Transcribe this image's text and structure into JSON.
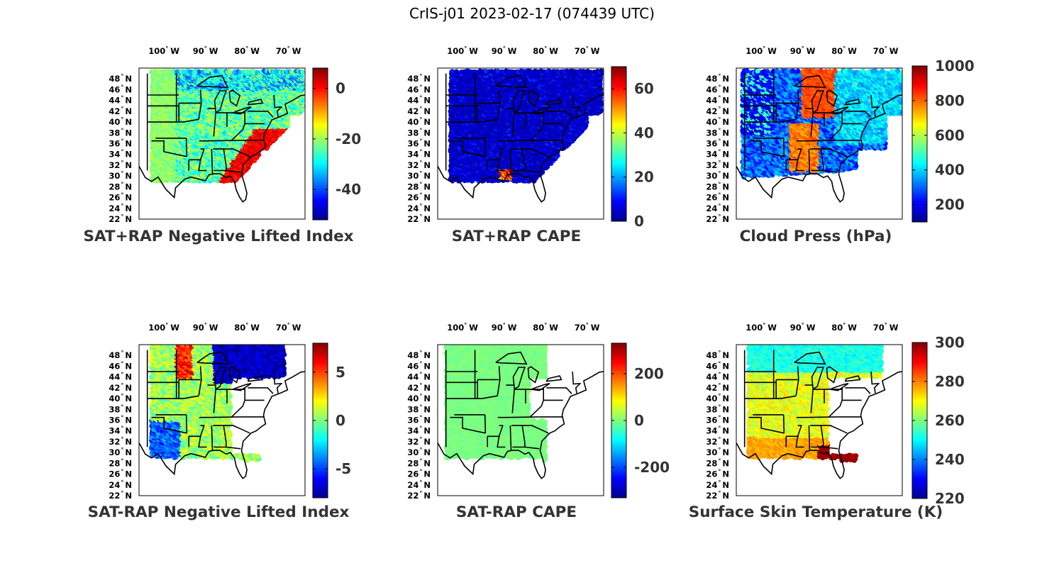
{
  "figure_title": "CrIS-j01 2023-02-17 (074439 UTC)",
  "lon_ticks": [
    {
      "deg": "100",
      "dir": "W"
    },
    {
      "deg": "90",
      "dir": "W"
    },
    {
      "deg": "80",
      "dir": "W"
    },
    {
      "deg": "70",
      "dir": "W"
    }
  ],
  "lat_ticks": [
    {
      "deg": "48",
      "dir": "N"
    },
    {
      "deg": "46",
      "dir": "N"
    },
    {
      "deg": "44",
      "dir": "N"
    },
    {
      "deg": "42",
      "dir": "N"
    },
    {
      "deg": "40",
      "dir": "N"
    },
    {
      "deg": "38",
      "dir": "N"
    },
    {
      "deg": "36",
      "dir": "N"
    },
    {
      "deg": "34",
      "dir": "N"
    },
    {
      "deg": "32",
      "dir": "N"
    },
    {
      "deg": "30",
      "dir": "N"
    },
    {
      "deg": "28",
      "dir": "N"
    },
    {
      "deg": "26",
      "dir": "N"
    },
    {
      "deg": "24",
      "dir": "N"
    },
    {
      "deg": "22",
      "dir": "N"
    }
  ],
  "chart_data": [
    {
      "type": "heatmap",
      "title": "SAT+RAP Negative Lifted Index",
      "colorbar": {
        "range": [
          -52,
          8
        ],
        "ticks": [
          "0",
          "-20",
          "-40"
        ],
        "tick_values": [
          0,
          -20,
          -40
        ]
      },
      "field": "li_sum"
    },
    {
      "type": "heatmap",
      "title": "SAT+RAP CAPE",
      "colorbar": {
        "range": [
          0,
          70
        ],
        "ticks": [
          "60",
          "40",
          "20",
          "0"
        ],
        "tick_values": [
          60,
          40,
          20,
          0
        ]
      },
      "field": "cape_sum"
    },
    {
      "type": "heatmap",
      "title": "Cloud Press (hPa)",
      "colorbar": {
        "range": [
          100,
          1000
        ],
        "ticks": [
          "1000",
          "800",
          "600",
          "400",
          "200"
        ],
        "tick_values": [
          1000,
          800,
          600,
          400,
          200
        ]
      },
      "field": "cloud_press"
    },
    {
      "type": "heatmap",
      "title": "SAT-RAP Negative Lifted Index",
      "colorbar": {
        "range": [
          -8,
          8
        ],
        "ticks": [
          "5",
          "0",
          "-5"
        ],
        "tick_values": [
          5,
          0,
          -5
        ]
      },
      "field": "li_diff"
    },
    {
      "type": "heatmap",
      "title": "SAT-RAP CAPE",
      "colorbar": {
        "range": [
          -330,
          330
        ],
        "ticks": [
          "200",
          "0",
          "-200"
        ],
        "tick_values": [
          200,
          0,
          -200
        ]
      },
      "field": "cape_diff"
    },
    {
      "type": "heatmap",
      "title": "Surface Skin Temperature (K)",
      "colorbar": {
        "range": [
          220,
          300
        ],
        "ticks": [
          "300",
          "280",
          "260",
          "240",
          "220"
        ],
        "tick_values": [
          300,
          280,
          260,
          240,
          220
        ]
      },
      "field": "skin_temp"
    }
  ]
}
